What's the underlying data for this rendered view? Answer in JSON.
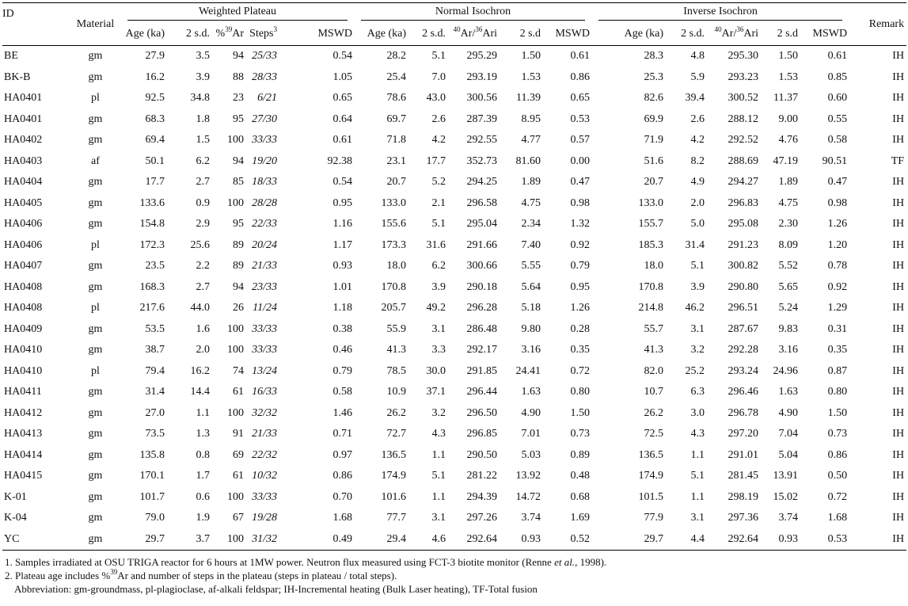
{
  "table": {
    "group_headers": [
      "ID",
      "Material",
      "Weighted Plateau",
      "Normal Isochron",
      "Inverse Isochron",
      "Remark"
    ],
    "columns": [
      [
        {
          "text": "Age (ka)"
        }
      ],
      [
        {
          "text": "2 s.d."
        }
      ],
      [
        {
          "text": "%"
        },
        {
          "text": "39",
          "sup": true
        },
        {
          "text": "Ar"
        }
      ],
      [
        {
          "text": "Steps"
        },
        {
          "text": "3",
          "sup": true
        }
      ],
      [
        {
          "text": "MSWD"
        }
      ],
      [
        {
          "text": "Age (ka)"
        }
      ],
      [
        {
          "text": "2 s.d."
        }
      ],
      [
        {
          "text": "40",
          "sup": true
        },
        {
          "text": "Ar/"
        },
        {
          "text": "36",
          "sup": true
        },
        {
          "text": "Ari"
        }
      ],
      [
        {
          "text": "2 s.d"
        }
      ],
      [
        {
          "text": "MSWD"
        }
      ],
      [
        {
          "text": "Age (ka)"
        }
      ],
      [
        {
          "text": "2 s.d."
        }
      ],
      [
        {
          "text": "40",
          "sup": true
        },
        {
          "text": "Ar/"
        },
        {
          "text": "36",
          "sup": true
        },
        {
          "text": "Ari"
        }
      ],
      [
        {
          "text": "2 s.d"
        }
      ],
      [
        {
          "text": "MSWD"
        }
      ]
    ],
    "rows": [
      [
        "BE",
        "gm",
        "27.9",
        "3.5",
        "94",
        "25/33",
        "0.54",
        "28.2",
        "5.1",
        "295.29",
        "1.50",
        "0.61",
        "28.3",
        "4.8",
        "295.30",
        "1.50",
        "0.61",
        "IH"
      ],
      [
        "BK-B",
        "gm",
        "16.2",
        "3.9",
        "88",
        "28/33",
        "1.05",
        "25.4",
        "7.0",
        "293.19",
        "1.53",
        "0.86",
        "25.3",
        "5.9",
        "293.23",
        "1.53",
        "0.85",
        "IH"
      ],
      [
        "HA0401",
        "pl",
        "92.5",
        "34.8",
        "23",
        "6/21",
        "0.65",
        "78.6",
        "43.0",
        "300.56",
        "11.39",
        "0.65",
        "82.6",
        "39.4",
        "300.52",
        "11.37",
        "0.60",
        "IH"
      ],
      [
        "HA0401",
        "gm",
        "68.3",
        "1.8",
        "95",
        "27/30",
        "0.64",
        "69.7",
        "2.6",
        "287.39",
        "8.95",
        "0.53",
        "69.9",
        "2.6",
        "288.12",
        "9.00",
        "0.55",
        "IH"
      ],
      [
        "HA0402",
        "gm",
        "69.4",
        "1.5",
        "100",
        "33/33",
        "0.61",
        "71.8",
        "4.2",
        "292.55",
        "4.77",
        "0.57",
        "71.9",
        "4.2",
        "292.52",
        "4.76",
        "0.58",
        "IH"
      ],
      [
        "HA0403",
        "af",
        "50.1",
        "6.2",
        "94",
        "19/20",
        "92.38",
        "23.1",
        "17.7",
        "352.73",
        "81.60",
        "0.00",
        "51.6",
        "8.2",
        "288.69",
        "47.19",
        "90.51",
        "TF"
      ],
      [
        "HA0404",
        "gm",
        "17.7",
        "2.7",
        "85",
        "18/33",
        "0.54",
        "20.7",
        "5.2",
        "294.25",
        "1.89",
        "0.47",
        "20.7",
        "4.9",
        "294.27",
        "1.89",
        "0.47",
        "IH"
      ],
      [
        "HA0405",
        "gm",
        "133.6",
        "0.9",
        "100",
        "28/28",
        "0.95",
        "133.0",
        "2.1",
        "296.58",
        "4.75",
        "0.98",
        "133.0",
        "2.0",
        "296.83",
        "4.75",
        "0.98",
        "IH"
      ],
      [
        "HA0406",
        "gm",
        "154.8",
        "2.9",
        "95",
        "22/33",
        "1.16",
        "155.6",
        "5.1",
        "295.04",
        "2.34",
        "1.32",
        "155.7",
        "5.0",
        "295.08",
        "2.30",
        "1.26",
        "IH"
      ],
      [
        "HA0406",
        "pl",
        "172.3",
        "25.6",
        "89",
        "20/24",
        "1.17",
        "173.3",
        "31.6",
        "291.66",
        "7.40",
        "0.92",
        "185.3",
        "31.4",
        "291.23",
        "8.09",
        "1.20",
        "IH"
      ],
      [
        "HA0407",
        "gm",
        "23.5",
        "2.2",
        "89",
        "21/33",
        "0.93",
        "18.0",
        "6.2",
        "300.66",
        "5.55",
        "0.79",
        "18.0",
        "5.1",
        "300.82",
        "5.52",
        "0.78",
        "IH"
      ],
      [
        "HA0408",
        "gm",
        "168.3",
        "2.7",
        "94",
        "23/33",
        "1.01",
        "170.8",
        "3.9",
        "290.18",
        "5.64",
        "0.95",
        "170.8",
        "3.9",
        "290.80",
        "5.65",
        "0.92",
        "IH"
      ],
      [
        "HA0408",
        "pl",
        "217.6",
        "44.0",
        "26",
        "11/24",
        "1.18",
        "205.7",
        "49.2",
        "296.28",
        "5.18",
        "1.26",
        "214.8",
        "46.2",
        "296.51",
        "5.24",
        "1.29",
        "IH"
      ],
      [
        "HA0409",
        "gm",
        "53.5",
        "1.6",
        "100",
        "33/33",
        "0.38",
        "55.9",
        "3.1",
        "286.48",
        "9.80",
        "0.28",
        "55.7",
        "3.1",
        "287.67",
        "9.83",
        "0.31",
        "IH"
      ],
      [
        "HA0410",
        "gm",
        "38.7",
        "2.0",
        "100",
        "33/33",
        "0.46",
        "41.3",
        "3.3",
        "292.17",
        "3.16",
        "0.35",
        "41.3",
        "3.2",
        "292.28",
        "3.16",
        "0.35",
        "IH"
      ],
      [
        "HA0410",
        "pl",
        "79.4",
        "16.2",
        "74",
        "13/24",
        "0.79",
        "78.5",
        "30.0",
        "291.85",
        "24.41",
        "0.72",
        "82.0",
        "25.2",
        "293.24",
        "24.96",
        "0.87",
        "IH"
      ],
      [
        "HA0411",
        "gm",
        "31.4",
        "14.4",
        "61",
        "16/33",
        "0.58",
        "10.9",
        "37.1",
        "296.44",
        "1.63",
        "0.80",
        "10.7",
        "6.3",
        "296.46",
        "1.63",
        "0.80",
        "IH"
      ],
      [
        "HA0412",
        "gm",
        "27.0",
        "1.1",
        "100",
        "32/32",
        "1.46",
        "26.2",
        "3.2",
        "296.50",
        "4.90",
        "1.50",
        "26.2",
        "3.0",
        "296.78",
        "4.90",
        "1.50",
        "IH"
      ],
      [
        "HA0413",
        "gm",
        "73.5",
        "1.3",
        "91",
        "21/33",
        "0.71",
        "72.7",
        "4.3",
        "296.85",
        "7.01",
        "0.73",
        "72.5",
        "4.3",
        "297.20",
        "7.04",
        "0.73",
        "IH"
      ],
      [
        "HA0414",
        "gm",
        "135.8",
        "0.8",
        "69",
        "22/32",
        "0.97",
        "136.5",
        "1.1",
        "290.50",
        "5.03",
        "0.89",
        "136.5",
        "1.1",
        "291.01",
        "5.04",
        "0.86",
        "IH"
      ],
      [
        "HA0415",
        "gm",
        "170.1",
        "1.7",
        "61",
        "10/32",
        "0.86",
        "174.9",
        "5.1",
        "281.22",
        "13.92",
        "0.48",
        "174.9",
        "5.1",
        "281.45",
        "13.91",
        "0.50",
        "IH"
      ],
      [
        "K-01",
        "gm",
        "101.7",
        "0.6",
        "100",
        "33/33",
        "0.70",
        "101.6",
        "1.1",
        "294.39",
        "14.72",
        "0.68",
        "101.5",
        "1.1",
        "298.19",
        "15.02",
        "0.72",
        "IH"
      ],
      [
        "K-04",
        "gm",
        "79.0",
        "1.9",
        "67",
        "19/28",
        "1.68",
        "77.7",
        "3.1",
        "297.26",
        "3.74",
        "1.69",
        "77.9",
        "3.1",
        "297.36",
        "3.74",
        "1.68",
        "IH"
      ],
      [
        "YC",
        "gm",
        "29.7",
        "3.7",
        "100",
        "31/32",
        "0.49",
        "29.4",
        "4.6",
        "292.64",
        "0.93",
        "0.52",
        "29.7",
        "4.4",
        "292.64",
        "0.93",
        "0.53",
        "IH"
      ]
    ]
  },
  "notes": [
    [
      {
        "text": "1. Samples irradiated at OSU TRIGA reactor for 6 hours at 1MW power. Neutron flux measured using FCT-3 biotite monitor (Renne "
      },
      {
        "text": "et al.",
        "italic": true
      },
      {
        "text": ", 1998)."
      }
    ],
    [
      {
        "text": "2. Plateau age includes %"
      },
      {
        "text": "39",
        "sup": true
      },
      {
        "text": "Ar and number of steps in the plateau (steps in plateau / total steps)."
      }
    ],
    [
      {
        "text": "Abbreviation: gm-groundmass, pl-plagioclase, af-alkali feldspar; IH-Incremental heating (Bulk Laser heating), TF-Total fusion"
      }
    ]
  ]
}
